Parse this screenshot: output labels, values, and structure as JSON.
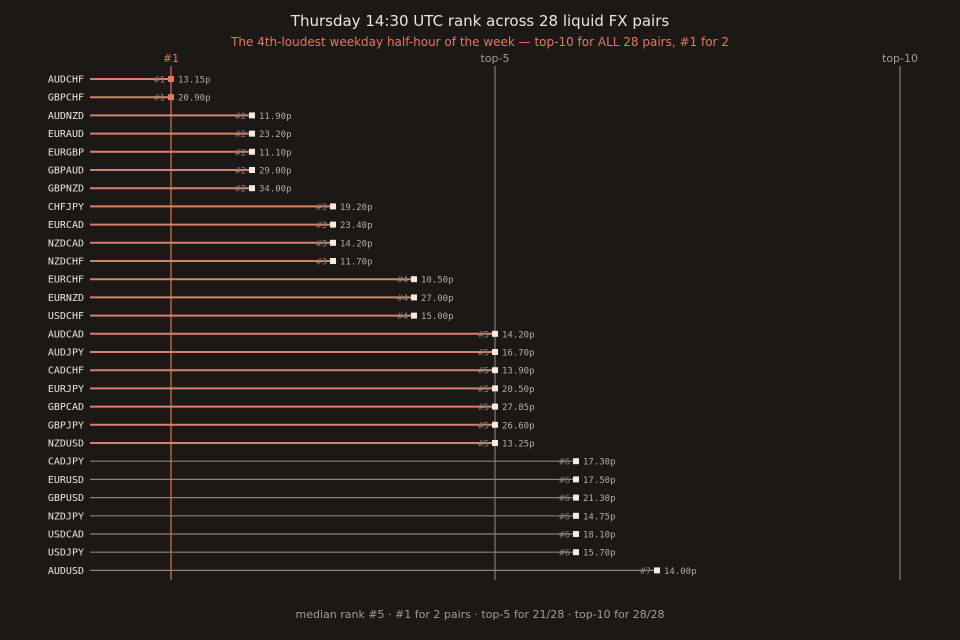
{
  "chart_data": {
    "type": "dot-strip",
    "title": "Thursday 14:30 UTC rank across 28 liquid FX pairs",
    "subtitle": "The 4th-loudest weekday half-hour of the week — top-10 for ALL 28 pairs, #1 for 2",
    "x_axis": {
      "range": [
        1,
        10
      ]
    },
    "reference_lines": [
      {
        "rank": 1,
        "label": "#1"
      },
      {
        "rank": 5,
        "label": "top-5"
      },
      {
        "rank": 10,
        "label": "top-10"
      }
    ],
    "rows": [
      {
        "pair": "AUDCHF",
        "rank": 1,
        "rank_label": "#1",
        "value_label": "13.15p"
      },
      {
        "pair": "GBPCHF",
        "rank": 1,
        "rank_label": "#1",
        "value_label": "20.90p"
      },
      {
        "pair": "AUDNZD",
        "rank": 2,
        "rank_label": "#2",
        "value_label": "11.90p"
      },
      {
        "pair": "EURAUD",
        "rank": 2,
        "rank_label": "#2",
        "value_label": "23.20p"
      },
      {
        "pair": "EURGBP",
        "rank": 2,
        "rank_label": "#2",
        "value_label": "11.10p"
      },
      {
        "pair": "GBPAUD",
        "rank": 2,
        "rank_label": "#2",
        "value_label": "29.00p"
      },
      {
        "pair": "GBPNZD",
        "rank": 2,
        "rank_label": "#2",
        "value_label": "34.00p"
      },
      {
        "pair": "CHFJPY",
        "rank": 3,
        "rank_label": "#3",
        "value_label": "19.20p"
      },
      {
        "pair": "EURCAD",
        "rank": 3,
        "rank_label": "#3",
        "value_label": "23.40p"
      },
      {
        "pair": "NZDCAD",
        "rank": 3,
        "rank_label": "#3",
        "value_label": "14.20p"
      },
      {
        "pair": "NZDCHF",
        "rank": 3,
        "rank_label": "#3",
        "value_label": "11.70p"
      },
      {
        "pair": "EURCHF",
        "rank": 4,
        "rank_label": "#4",
        "value_label": "10.50p"
      },
      {
        "pair": "EURNZD",
        "rank": 4,
        "rank_label": "#4",
        "value_label": "27.00p"
      },
      {
        "pair": "USDCHF",
        "rank": 4,
        "rank_label": "#4",
        "value_label": "15.00p"
      },
      {
        "pair": "AUDCAD",
        "rank": 5,
        "rank_label": "#5",
        "value_label": "14.20p"
      },
      {
        "pair": "AUDJPY",
        "rank": 5,
        "rank_label": "#5",
        "value_label": "16.70p"
      },
      {
        "pair": "CADCHF",
        "rank": 5,
        "rank_label": "#5",
        "value_label": "13.90p"
      },
      {
        "pair": "EURJPY",
        "rank": 5,
        "rank_label": "#5",
        "value_label": "20.50p"
      },
      {
        "pair": "GBPCAD",
        "rank": 5,
        "rank_label": "#5",
        "value_label": "27.85p"
      },
      {
        "pair": "GBPJPY",
        "rank": 5,
        "rank_label": "#5",
        "value_label": "26.60p"
      },
      {
        "pair": "NZDUSD",
        "rank": 5,
        "rank_label": "#5",
        "value_label": "13.25p"
      },
      {
        "pair": "CADJPY",
        "rank": 6,
        "rank_label": "#6",
        "value_label": "17.30p"
      },
      {
        "pair": "EURUSD",
        "rank": 6,
        "rank_label": "#6",
        "value_label": "17.50p"
      },
      {
        "pair": "GBPUSD",
        "rank": 6,
        "rank_label": "#6",
        "value_label": "21.30p"
      },
      {
        "pair": "NZDJPY",
        "rank": 6,
        "rank_label": "#6",
        "value_label": "14.75p"
      },
      {
        "pair": "USDCAD",
        "rank": 6,
        "rank_label": "#6",
        "value_label": "18.10p"
      },
      {
        "pair": "USDJPY",
        "rank": 6,
        "rank_label": "#6",
        "value_label": "15.70p"
      },
      {
        "pair": "AUDUSD",
        "rank": 7,
        "rank_label": "#7",
        "value_label": "14.00p"
      }
    ],
    "footer": "median rank #5 · #1 for 2 pairs · top-5 for 21/28 · top-10 for 28/28",
    "colors": {
      "background": "#1c1816",
      "accent": "#e07a5f",
      "top5_line": "#d4826c",
      "other_line": "#8a8178",
      "marker": "#f3ece4",
      "top1_marker": "#e07a5f",
      "ref_top1": "#b8604c",
      "ref_other": "#6e6760"
    }
  }
}
